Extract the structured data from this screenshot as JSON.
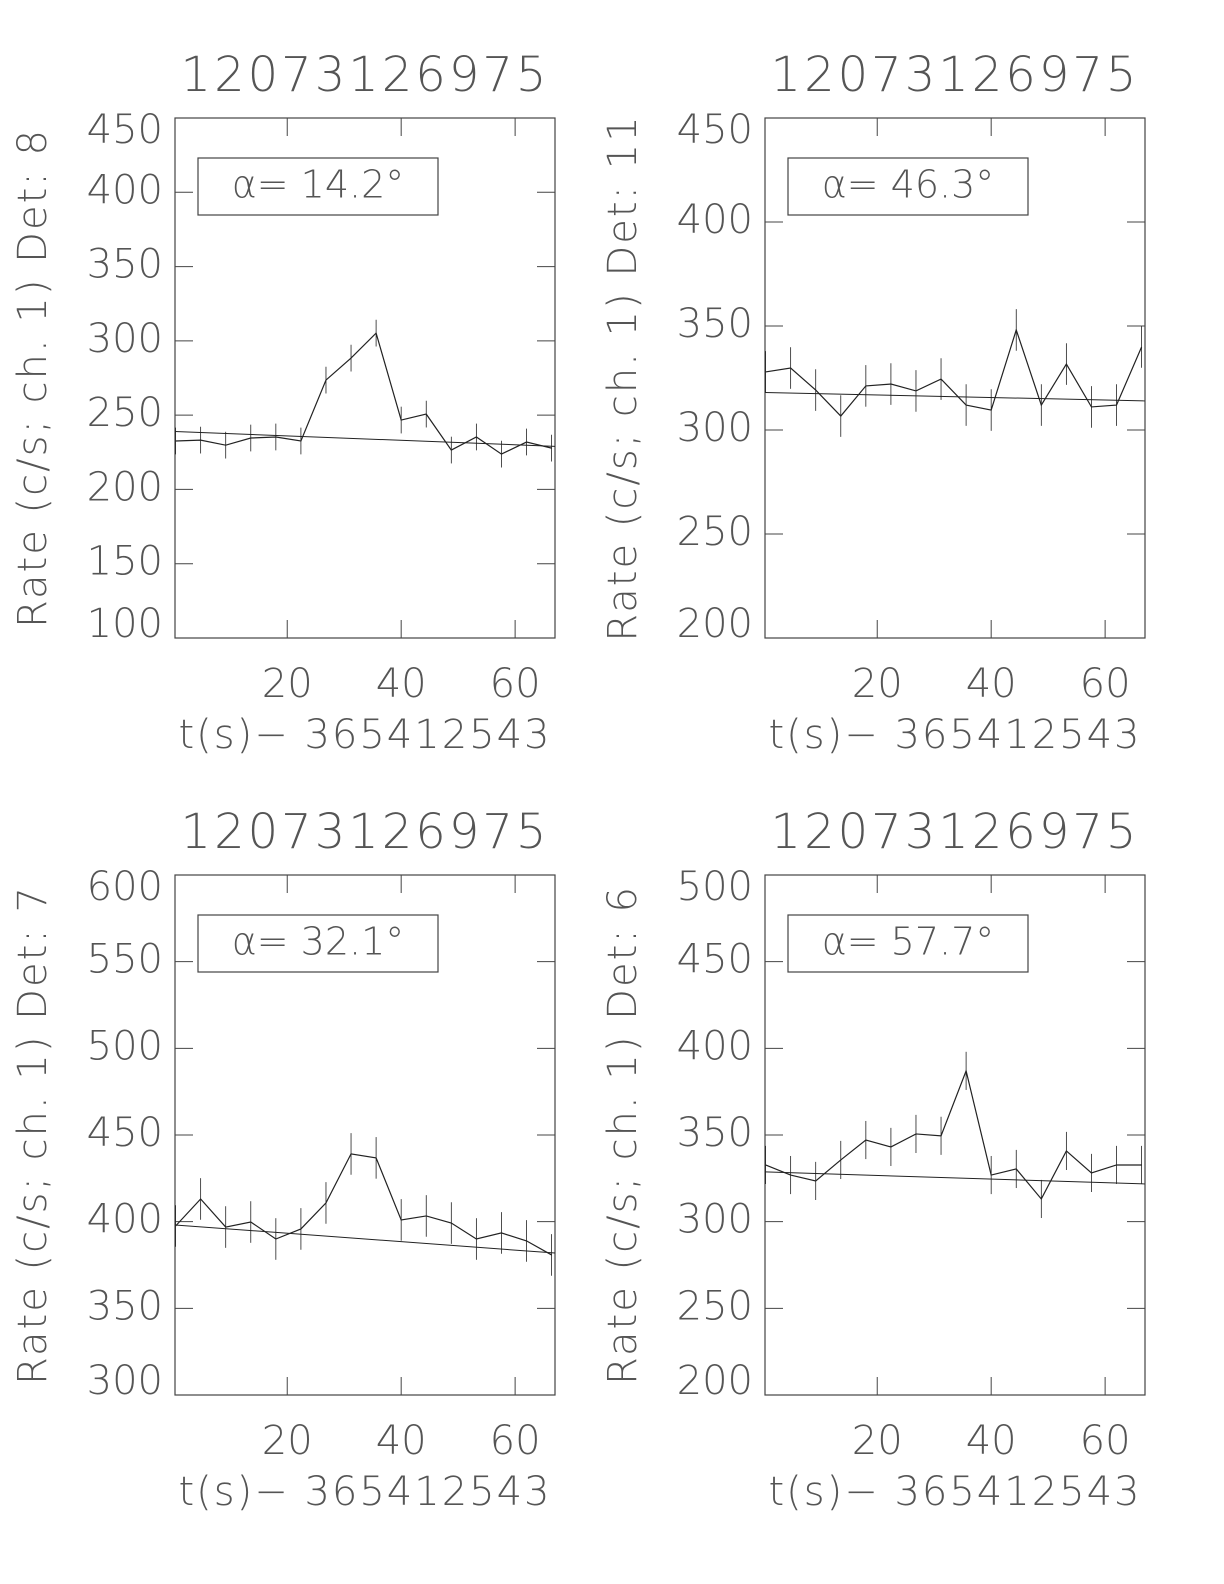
{
  "chart_data": [
    {
      "type": "line",
      "title": "12073126975",
      "xlabel": "t(s)− 365412543",
      "ylabel": "Rate (c/s; ch. 1) Det: 8",
      "annotation": "α= 14.2°",
      "x": [
        0.4,
        4.8,
        9.2,
        13.6,
        18,
        22.4,
        26.8,
        31.2,
        35.6,
        40,
        44.4,
        48.8,
        53.2,
        57.6,
        62,
        66.4
      ],
      "series": [
        {
          "color": "#222222",
          "values": [
            232.6,
            233.2,
            229.8,
            234.6,
            235.3,
            232.6,
            273.6,
            288.4,
            305.2,
            246.7,
            250.7,
            226.5,
            235.3,
            223.8,
            231.9,
            227.8
          ],
          "errors": [
            9,
            9,
            9,
            9,
            9,
            9,
            9,
            9,
            9,
            9,
            9,
            9,
            9,
            9,
            9,
            9
          ]
        }
      ],
      "fit": {
        "color": "#222222",
        "x": [
          0.3,
          67
        ],
        "values": [
          239,
          229
        ]
      },
      "xlim": [
        0.3,
        67
      ],
      "xticks": [
        20,
        40,
        60
      ],
      "ylim": [
        100,
        450
      ],
      "yticks": [
        100,
        150,
        200,
        250,
        300,
        350,
        400,
        450
      ]
    },
    {
      "type": "line",
      "title": "12073126975",
      "xlabel": "t(s)− 365412543",
      "ylabel": "Rate (c/s; ch. 1) Det: 11",
      "annotation": "α= 46.3°",
      "x": [
        0.4,
        4.8,
        9.2,
        13.6,
        18,
        22.4,
        26.8,
        31.2,
        35.6,
        40,
        44.4,
        48.8,
        53.2,
        57.6,
        62,
        66.4
      ],
      "series": [
        {
          "color": "#222222",
          "values": [
            327.9,
            329.8,
            319.2,
            306.7,
            321.2,
            322.1,
            318.8,
            324.5,
            312.0,
            309.6,
            348.1,
            312.0,
            331.7,
            311.1,
            312.0,
            339.9
          ],
          "errors": [
            10,
            10,
            10,
            10,
            10,
            10,
            10,
            10,
            10,
            10,
            10,
            10,
            10,
            10,
            10,
            10
          ]
        }
      ],
      "fit": {
        "color": "#222222",
        "x": [
          0.3,
          67
        ],
        "values": [
          318,
          314
        ]
      },
      "xlim": [
        0.3,
        67
      ],
      "xticks": [
        20,
        40,
        60
      ],
      "ylim": [
        200,
        450
      ],
      "yticks": [
        200,
        250,
        300,
        350,
        400,
        450
      ]
    },
    {
      "type": "line",
      "title": "12073126975",
      "xlabel": "t(s)− 365412543",
      "ylabel": "Rate (c/s; ch. 1) Det: 7",
      "annotation": "α= 32.1°",
      "x": [
        0.4,
        4.8,
        9.2,
        13.6,
        18,
        22.4,
        26.8,
        31.2,
        35.6,
        40,
        44.4,
        48.8,
        53.2,
        57.6,
        62,
        66.4
      ],
      "series": [
        {
          "color": "#222222",
          "values": [
            397.5,
            413.1,
            396.9,
            399.8,
            390.0,
            395.8,
            410.8,
            439.1,
            436.8,
            401.0,
            403.3,
            399.2,
            390.0,
            393.5,
            388.9,
            380.8
          ],
          "errors": [
            12,
            12,
            12,
            12,
            12,
            12,
            12,
            12,
            12,
            12,
            12,
            12,
            12,
            12,
            12,
            12
          ]
        }
      ],
      "fit": {
        "color": "#222222",
        "x": [
          0.3,
          67
        ],
        "values": [
          398.1,
          381.9
        ]
      },
      "xlim": [
        0.3,
        67
      ],
      "xticks": [
        20,
        40,
        60
      ],
      "ylim": [
        300,
        600
      ],
      "yticks": [
        300,
        350,
        400,
        450,
        500,
        550,
        600
      ]
    },
    {
      "type": "line",
      "title": "12073126975",
      "xlabel": "t(s)− 365412543",
      "ylabel": "Rate (c/s; ch. 1) Det: 6",
      "annotation": "α= 57.7°",
      "x": [
        0.4,
        4.8,
        9.2,
        13.6,
        18,
        22.4,
        26.8,
        31.2,
        35.6,
        40,
        44.4,
        48.8,
        53.2,
        57.6,
        62,
        66.4
      ],
      "series": [
        {
          "color": "#222222",
          "values": [
            332.7,
            326.9,
            323.5,
            335.6,
            347.1,
            343.1,
            350.6,
            349.5,
            387.0,
            326.9,
            330.4,
            313.1,
            340.8,
            328.1,
            332.7,
            332.7
          ],
          "errors": [
            11,
            11,
            11,
            11,
            11,
            11,
            11,
            11,
            11,
            11,
            11,
            11,
            11,
            11,
            11,
            11
          ]
        }
      ],
      "fit": {
        "color": "#222222",
        "x": [
          0.3,
          67
        ],
        "values": [
          328.7,
          321.8
        ]
      },
      "xlim": [
        0.3,
        67
      ],
      "xticks": [
        20,
        40,
        60
      ],
      "ylim": [
        200,
        500
      ],
      "yticks": [
        200,
        250,
        300,
        350,
        400,
        450,
        500
      ]
    }
  ]
}
